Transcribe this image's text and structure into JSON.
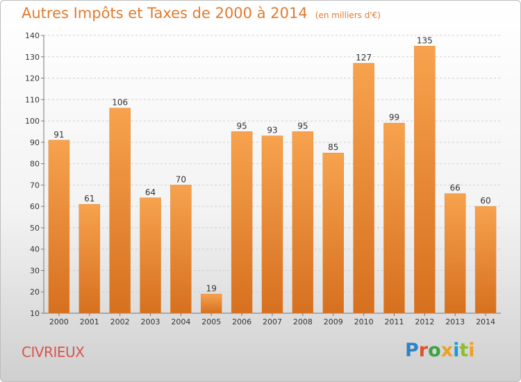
{
  "chart_data": {
    "type": "bar",
    "title": "Autres Impôts et Taxes de 2000 à 2014",
    "subtitle": "(en milliers d'€)",
    "categories": [
      "2000",
      "2001",
      "2002",
      "2003",
      "2004",
      "2005",
      "2006",
      "2007",
      "2008",
      "2009",
      "2010",
      "2011",
      "2012",
      "2013",
      "2014"
    ],
    "values": [
      91,
      61,
      106,
      64,
      70,
      19,
      95,
      93,
      95,
      85,
      127,
      99,
      135,
      66,
      60
    ],
    "ylim": [
      10,
      140
    ],
    "yticks": [
      10,
      20,
      30,
      40,
      50,
      60,
      70,
      80,
      90,
      100,
      110,
      120,
      130,
      140
    ],
    "grid": true,
    "bar_color": "#f0923a",
    "xlabel": "",
    "ylabel": ""
  },
  "footer": {
    "city": "CIVRIEUX",
    "logo": [
      "P",
      "r",
      "o",
      "x",
      "i",
      "t",
      "i"
    ]
  },
  "colors": {
    "title": "#e07b2e",
    "city": "#d9534f"
  }
}
